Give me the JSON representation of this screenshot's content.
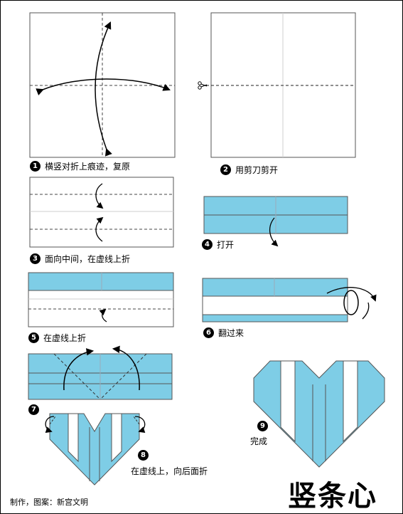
{
  "colors": {
    "paper_blue": "#7ecde6",
    "outline": "#555555",
    "fold_line": "#444444",
    "crease": "#cfcfcf",
    "badge": "#000000"
  },
  "steps": [
    {
      "num": "1",
      "caption": "横竖对折上痕迹，复原"
    },
    {
      "num": "2",
      "caption": "用剪刀剪开"
    },
    {
      "num": "3",
      "caption": "面向中间，在虚线上折"
    },
    {
      "num": "4",
      "caption": "打开"
    },
    {
      "num": "5",
      "caption": "在虚线上折"
    },
    {
      "num": "6",
      "caption": "翻过来"
    },
    {
      "num": "7",
      "caption": ""
    },
    {
      "num": "8",
      "caption": "在虚线上，向后面折"
    },
    {
      "num": "9",
      "caption": "完成"
    }
  ],
  "icons": {
    "scissors": "scissors-icon"
  },
  "title": "竖条心",
  "credit": "制作，图案：新宫文明"
}
